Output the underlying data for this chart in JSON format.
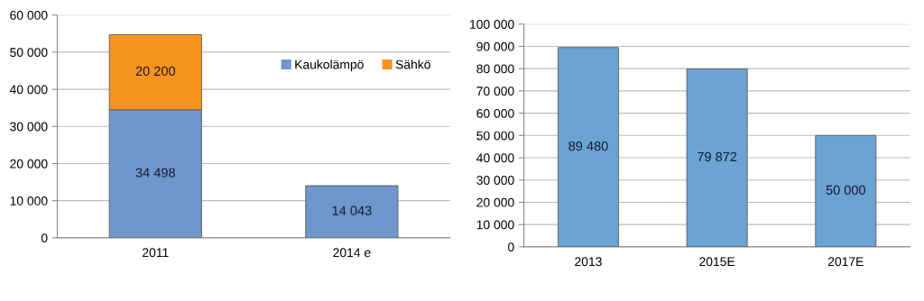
{
  "chart_data": [
    {
      "type": "bar",
      "stacked": true,
      "categories": [
        "2011",
        "2014 e"
      ],
      "series": [
        {
          "name": "Kaukolämpö",
          "color": "#6f97cc",
          "values": [
            34498,
            14043
          ],
          "value_labels": [
            "34 498",
            "14 043"
          ]
        },
        {
          "name": "Sähkö",
          "color": "#f7941d",
          "values": [
            20200,
            null
          ],
          "value_labels": [
            "20 200",
            null
          ]
        }
      ],
      "ylim": [
        0,
        60000
      ],
      "yticks": [
        {
          "value": 0,
          "label": "0"
        },
        {
          "value": 10000,
          "label": "10 000"
        },
        {
          "value": 20000,
          "label": "20 000"
        },
        {
          "value": 30000,
          "label": "30 000"
        },
        {
          "value": 40000,
          "label": "40 000"
        },
        {
          "value": 50000,
          "label": "50 000"
        },
        {
          "value": 60000,
          "label": "60 000"
        }
      ],
      "grid": "y",
      "legend": "top right"
    },
    {
      "type": "bar",
      "categories": [
        "2013",
        "2015E",
        "2017E"
      ],
      "series": [
        {
          "color": "#6ba3d3",
          "values": [
            89480,
            79872,
            50000
          ],
          "value_labels": [
            "89 480",
            "79 872",
            "50 000"
          ]
        }
      ],
      "ylim": [
        0,
        100000
      ],
      "yticks": [
        {
          "value": 0,
          "label": "0"
        },
        {
          "value": 10000,
          "label": "10 000"
        },
        {
          "value": 20000,
          "label": "20 000"
        },
        {
          "value": 30000,
          "label": "30 000"
        },
        {
          "value": 40000,
          "label": "40 000"
        },
        {
          "value": 50000,
          "label": "50 000"
        },
        {
          "value": 60000,
          "label": "60 000"
        },
        {
          "value": 70000,
          "label": "70 000"
        },
        {
          "value": 80000,
          "label": "80 000"
        },
        {
          "value": 90000,
          "label": "90 000"
        },
        {
          "value": 100000,
          "label": "100 000"
        }
      ],
      "grid": "y"
    }
  ]
}
